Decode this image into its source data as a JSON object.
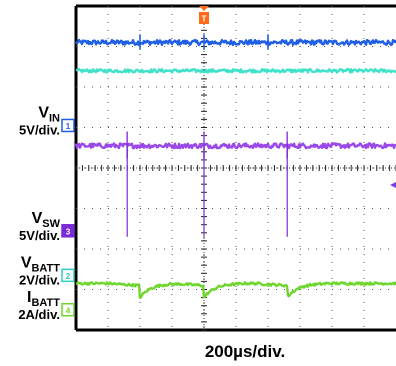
{
  "chart_data": {
    "type": "line",
    "title": "",
    "timebase": "200µs/div.",
    "trigger_marker": "T",
    "x_unit": "div",
    "xlim": [
      0,
      10
    ],
    "ylim": [
      -4,
      4
    ],
    "grid": true,
    "channels": [
      {
        "id": "1",
        "name_main": "V",
        "name_sub": "IN",
        "scale": "5V/div.",
        "color": "#1f5fe6",
        "ref_level": 1.05,
        "trace_level": 3.1,
        "noise": 0.06,
        "spikes_at": [
          2.0,
          4.0,
          6.0
        ],
        "spike_height": 0.2
      },
      {
        "id": "2",
        "name_main": "",
        "name_sub": "",
        "scale": "",
        "color": "#3fe2c8",
        "ref_level": null,
        "trace_level": 2.4,
        "noise": 0.04,
        "spikes_at": [],
        "spike_height": 0
      },
      {
        "id": "1",
        "name_main": "",
        "name_sub": "",
        "scale": "",
        "color": "#9a49e8",
        "ref_level": null,
        "trace_level": 0.55,
        "noise": 0.06,
        "spikes_at": [
          1.6,
          4.0,
          6.6
        ],
        "spike_height": 0.35
      },
      {
        "id": "3",
        "name_main": "V",
        "name_sub": "SW",
        "scale": "5V/div.",
        "color": "#7a2bd6",
        "ref_level": -1.55,
        "trace_level": null,
        "noise": 0,
        "spikes_at": [
          1.6,
          4.0,
          6.6
        ],
        "spike_height": 2.3
      },
      {
        "id": "2",
        "name_main": "V",
        "name_sub": "BATT",
        "scale": "2V/div.",
        "color": "#2fd0c0",
        "ref_level": -2.65,
        "trace_level": null,
        "noise": 0,
        "spikes_at": [],
        "spike_height": 0
      },
      {
        "id": "4",
        "name_main": "I",
        "name_sub": "BATT",
        "scale": "2A/div.",
        "color": "#6fd62e",
        "ref_level": -3.5,
        "trace_level": -2.85,
        "noise": 0.03,
        "dips_at": [
          2.0,
          4.0,
          6.6
        ],
        "dip_depth": 0.35,
        "spikes_at": [],
        "spike_height": 0
      }
    ]
  },
  "colors": {
    "frame": "#000000",
    "grid": "#555555",
    "trigger": "#ff6a1a",
    "purple_marker": "#6b2bd1",
    "green_marker": "#7dd83a",
    "right_arrow": "#7a3cdb"
  },
  "labels": {
    "timebase": "200µs/div."
  }
}
